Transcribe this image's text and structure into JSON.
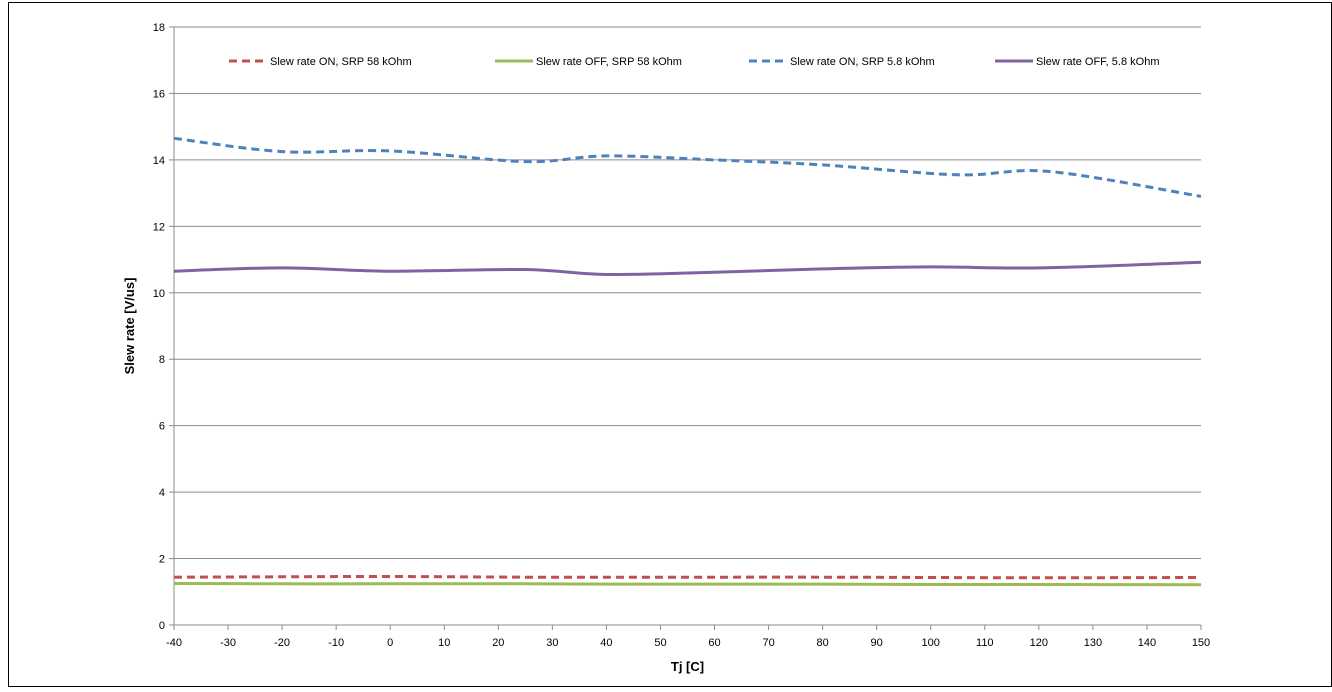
{
  "chart_data": {
    "type": "line",
    "title": "",
    "xlabel": "Tj [C]",
    "ylabel": "Slew rate  [V/us]",
    "xlim": [
      -40,
      150
    ],
    "ylim": [
      0,
      18
    ],
    "x_ticks": [
      -40,
      -30,
      -20,
      -10,
      0,
      10,
      20,
      30,
      40,
      50,
      60,
      70,
      80,
      90,
      100,
      110,
      120,
      130,
      140,
      150
    ],
    "y_ticks": [
      0,
      2,
      4,
      6,
      8,
      10,
      12,
      14,
      16,
      18
    ],
    "grid": "horizontal",
    "legend_position": "top",
    "series": [
      {
        "name": "Slew rate ON, SRP 58 kOhm",
        "color": "#c0504d",
        "dashed": true,
        "x": [
          -40,
          -20,
          0,
          25,
          40,
          60,
          80,
          100,
          120,
          150
        ],
        "y": [
          1.44,
          1.45,
          1.46,
          1.44,
          1.44,
          1.44,
          1.44,
          1.43,
          1.42,
          1.43
        ]
      },
      {
        "name": "Slew rate OFF, SRP 58 kOhm",
        "color": "#9bbb59",
        "dashed": false,
        "x": [
          -40,
          -20,
          0,
          25,
          40,
          60,
          80,
          100,
          120,
          150
        ],
        "y": [
          1.25,
          1.24,
          1.24,
          1.24,
          1.23,
          1.23,
          1.23,
          1.22,
          1.22,
          1.21
        ]
      },
      {
        "name": "Slew rate ON, SRP 5.8 kOhm",
        "color": "#4f81bd",
        "dashed": true,
        "x": [
          -40,
          -20,
          0,
          25,
          40,
          60,
          80,
          105,
          122,
          150
        ],
        "y": [
          14.65,
          14.25,
          14.27,
          13.95,
          14.12,
          14.0,
          13.85,
          13.55,
          13.65,
          12.9
        ]
      },
      {
        "name": "Slew rate OFF, 5.8 kOhm",
        "color": "#8064a2",
        "dashed": false,
        "x": [
          -40,
          -20,
          0,
          25,
          40,
          60,
          80,
          100,
          120,
          150
        ],
        "y": [
          10.65,
          10.75,
          10.65,
          10.7,
          10.55,
          10.62,
          10.72,
          10.78,
          10.75,
          10.92
        ]
      }
    ]
  }
}
